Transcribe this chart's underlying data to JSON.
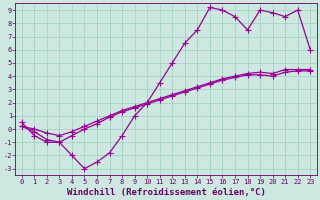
{
  "xlabel": "Windchill (Refroidissement éolien,°C)",
  "xlim": [
    -0.5,
    23.5
  ],
  "ylim": [
    -3.5,
    9.5
  ],
  "xticks": [
    0,
    1,
    2,
    3,
    4,
    5,
    6,
    7,
    8,
    9,
    10,
    11,
    12,
    13,
    14,
    15,
    16,
    17,
    18,
    19,
    20,
    21,
    22,
    23
  ],
  "yticks": [
    -3,
    -2,
    -1,
    0,
    1,
    2,
    3,
    4,
    5,
    6,
    7,
    8,
    9
  ],
  "background_color": "#cce8e0",
  "grid_color": "#9ecfbf",
  "line_color": "#990099",
  "line1_x": [
    0,
    1,
    2,
    3,
    4,
    5,
    6,
    7,
    8,
    9,
    10,
    11,
    12,
    13,
    14,
    15,
    16,
    17,
    18,
    19,
    20,
    21,
    22,
    23
  ],
  "line1_y": [
    0.5,
    -0.5,
    -1.0,
    -1.0,
    -2.0,
    -3.0,
    -2.5,
    -1.8,
    -0.5,
    1.0,
    2.0,
    3.5,
    5.0,
    6.5,
    7.5,
    9.2,
    9.0,
    8.5,
    7.5,
    9.0,
    8.8,
    8.5,
    9.0,
    6.0
  ],
  "line2_x": [
    0,
    1,
    2,
    3,
    4,
    5,
    6,
    7,
    8,
    9,
    10,
    11,
    12,
    13,
    14,
    15,
    16,
    17,
    18,
    19,
    20,
    21,
    22,
    23
  ],
  "line2_y": [
    0.2,
    0.0,
    -0.3,
    -0.5,
    -0.2,
    0.2,
    0.6,
    1.0,
    1.4,
    1.7,
    2.0,
    2.3,
    2.6,
    2.9,
    3.2,
    3.5,
    3.8,
    4.0,
    4.2,
    4.3,
    4.2,
    4.5,
    4.5,
    4.5
  ],
  "line3_x": [
    0,
    1,
    2,
    3,
    4,
    5,
    6,
    7,
    8,
    9,
    10,
    11,
    12,
    13,
    14,
    15,
    16,
    17,
    18,
    19,
    20,
    21,
    22,
    23
  ],
  "line3_y": [
    0.2,
    -0.2,
    -0.8,
    -1.0,
    -0.5,
    0.0,
    0.4,
    0.9,
    1.3,
    1.6,
    1.9,
    2.2,
    2.5,
    2.8,
    3.1,
    3.4,
    3.7,
    3.9,
    4.1,
    4.1,
    4.0,
    4.3,
    4.4,
    4.4
  ],
  "marker": "+",
  "markersize": 4,
  "linewidth": 0.9,
  "tick_fontsize": 5,
  "xlabel_fontsize": 6.5,
  "tick_color": "#660066",
  "label_color": "#660066"
}
